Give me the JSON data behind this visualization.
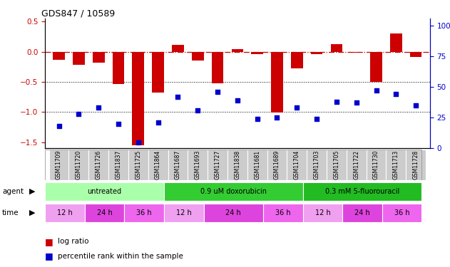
{
  "title": "GDS847 / 10589",
  "samples": [
    "GSM11709",
    "GSM11720",
    "GSM11726",
    "GSM11837",
    "GSM11725",
    "GSM11864",
    "GSM11687",
    "GSM11693",
    "GSM11727",
    "GSM11838",
    "GSM11681",
    "GSM11689",
    "GSM11704",
    "GSM11703",
    "GSM11705",
    "GSM11722",
    "GSM11730",
    "GSM11713",
    "GSM11728"
  ],
  "log_ratio": [
    -0.13,
    -0.21,
    -0.18,
    -0.54,
    -1.55,
    -0.68,
    0.11,
    -0.14,
    -0.52,
    0.05,
    -0.04,
    -1.01,
    -0.28,
    -0.04,
    0.13,
    -0.01,
    -0.5,
    0.3,
    -0.08
  ],
  "percentile": [
    18,
    28,
    33,
    20,
    5,
    21,
    42,
    31,
    46,
    39,
    24,
    25,
    33,
    24,
    38,
    37,
    47,
    44,
    35
  ],
  "agents": [
    {
      "label": "untreated",
      "start": 0,
      "end": 6,
      "color": "#aaffaa"
    },
    {
      "label": "0.9 uM doxorubicin",
      "start": 6,
      "end": 13,
      "color": "#33cc33"
    },
    {
      "label": "0.3 mM 5-fluorouracil",
      "start": 13,
      "end": 19,
      "color": "#22bb22"
    }
  ],
  "times": [
    {
      "label": "12 h",
      "start": 0,
      "end": 2,
      "color": "#f0a0f0"
    },
    {
      "label": "24 h",
      "start": 2,
      "end": 4,
      "color": "#dd44dd"
    },
    {
      "label": "36 h",
      "start": 4,
      "end": 6,
      "color": "#ee66ee"
    },
    {
      "label": "12 h",
      "start": 6,
      "end": 8,
      "color": "#f0a0f0"
    },
    {
      "label": "24 h",
      "start": 8,
      "end": 11,
      "color": "#dd44dd"
    },
    {
      "label": "36 h",
      "start": 11,
      "end": 13,
      "color": "#ee66ee"
    },
    {
      "label": "12 h",
      "start": 13,
      "end": 15,
      "color": "#f0a0f0"
    },
    {
      "label": "24 h",
      "start": 15,
      "end": 17,
      "color": "#dd44dd"
    },
    {
      "label": "36 h",
      "start": 17,
      "end": 19,
      "color": "#ee66ee"
    }
  ],
  "ylim_left": [
    -1.6,
    0.55
  ],
  "ylim_right": [
    0,
    105.7
  ],
  "bar_color": "#cc0000",
  "dot_color": "#0000cc",
  "hline_color": "#cc0000",
  "grid_color": "#000000",
  "sample_box_color": "#cccccc",
  "tick_label_color_left": "#cc0000",
  "tick_label_color_right": "#0000cc",
  "yticks_left": [
    0.5,
    0.0,
    -0.5,
    -1.0,
    -1.5
  ],
  "yticks_right": [
    100,
    75,
    50,
    25,
    0
  ],
  "ytick_labels_right": [
    "100%",
    "75",
    "50",
    "25",
    "0"
  ]
}
